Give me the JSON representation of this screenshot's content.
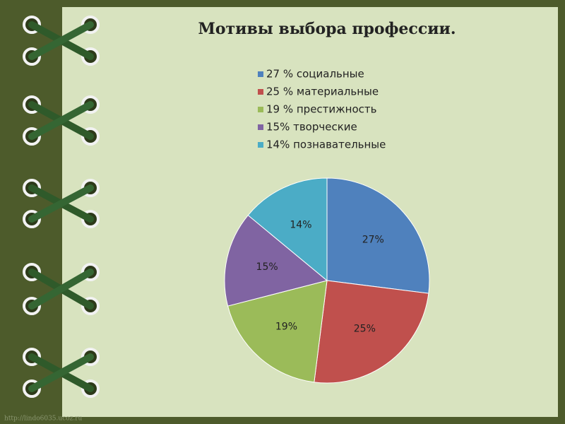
{
  "chart_data": {
    "type": "pie",
    "title": "Мотивы выбора профессии.",
    "categories": [
      "27 % социальные",
      "25 % материальные",
      "19 % престижность",
      "15% творческие",
      "14% познавательные"
    ],
    "values": [
      27,
      25,
      19,
      15,
      14
    ],
    "value_labels": [
      "27%",
      "25%",
      "19%",
      "15%",
      "14%"
    ],
    "colors": [
      "#4f81bd",
      "#c0504d",
      "#9bbb59",
      "#8064a2",
      "#4bacc6"
    ],
    "legend": "top",
    "footer": "http://lindo6035.ucoz.ru"
  }
}
